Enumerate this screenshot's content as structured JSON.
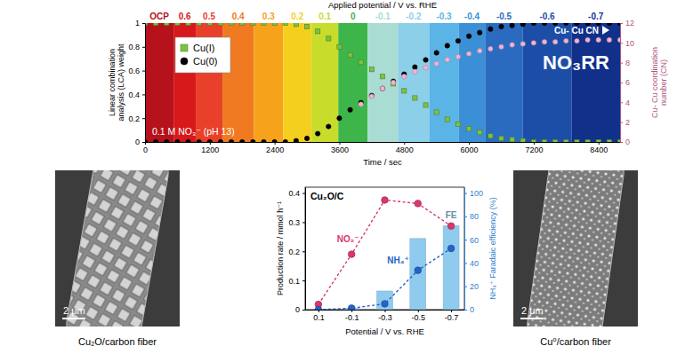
{
  "chart_data": [
    {
      "type": "scatter",
      "x_label": "Time / sec",
      "y_label": "Linear combination analysis (LCA) weight",
      "y2_label": "Cu- Cu coordination number (CN)",
      "x2_label": "Applied potential / V vs. RHE",
      "steps": {
        "labels": [
          "OCP",
          "0.6",
          "0.5",
          "0.4",
          "0.3",
          "0.2",
          "0.1",
          "0",
          "-0.1",
          "-0.2",
          "-0.3",
          "-0.4",
          "-0.5",
          "-0.6",
          "-0.7"
        ],
        "start": [
          0,
          530,
          940,
          1435,
          2015,
          2560,
          3085,
          3580,
          4125,
          4685,
          5265,
          5810,
          6300,
          7000,
          7900
        ],
        "end": [
          530,
          940,
          1435,
          2015,
          2560,
          3085,
          3580,
          4125,
          4685,
          5265,
          5810,
          6300,
          7000,
          7900,
          8800
        ],
        "colors": [
          "#b5121b",
          "#d7191c",
          "#e8402a",
          "#f07a22",
          "#f7a21b",
          "#f5cf1d",
          "#c8dc2c",
          "#3db54a",
          "#a9dcd2",
          "#8ccfe9",
          "#5ab4e5",
          "#3a8fd6",
          "#2a6bc0",
          "#1c4ea8",
          "#10308a"
        ]
      },
      "x": [
        0,
        200,
        400,
        600,
        800,
        1000,
        1200,
        1400,
        1600,
        1800,
        2000,
        2200,
        2400,
        2600,
        2800,
        3000,
        3200,
        3400,
        3600,
        3800,
        4000,
        4200,
        4400,
        4600,
        4800,
        5000,
        5200,
        5400,
        5600,
        5800,
        6000,
        6200,
        6400,
        6600,
        6800,
        7000,
        7200,
        7400,
        7600,
        7800,
        8000,
        8200,
        8400,
        8600,
        8800
      ],
      "series": [
        {
          "name": "Cu(I)",
          "color": "#7cc242",
          "marker": "square",
          "values": [
            1,
            1,
            1,
            1,
            1,
            1,
            1,
            1,
            1,
            1,
            1,
            1,
            1,
            1,
            0.99,
            0.97,
            0.93,
            0.87,
            0.8,
            0.73,
            0.67,
            0.61,
            0.55,
            0.49,
            0.43,
            0.37,
            0.31,
            0.25,
            0.19,
            0.15,
            0.11,
            0.08,
            0.05,
            0.03,
            0.02,
            0.01,
            0,
            0,
            0,
            0,
            0,
            0,
            0,
            0,
            0
          ]
        },
        {
          "name": "Cu(0)",
          "color": "#000000",
          "marker": "circle",
          "values": [
            0,
            0,
            0,
            0,
            0,
            0,
            0,
            0,
            0,
            0,
            0,
            0,
            0,
            0,
            0.01,
            0.03,
            0.07,
            0.13,
            0.2,
            0.27,
            0.33,
            0.39,
            0.45,
            0.51,
            0.57,
            0.63,
            0.69,
            0.75,
            0.81,
            0.85,
            0.89,
            0.92,
            0.95,
            0.97,
            0.98,
            0.99,
            1,
            1,
            1,
            1,
            1,
            1,
            1,
            1,
            1
          ]
        },
        {
          "name": "Cu- Cu CN",
          "color": "#f0b3d6",
          "marker": "circle",
          "axis": "y2",
          "values": [
            null,
            null,
            null,
            null,
            null,
            null,
            null,
            null,
            null,
            null,
            null,
            null,
            null,
            null,
            null,
            null,
            null,
            null,
            null,
            null,
            3.8,
            4.6,
            5.4,
            6,
            6.6,
            7.1,
            7.5,
            7.9,
            8.3,
            8.6,
            8.9,
            9.2,
            9.4,
            9.6,
            9.8,
            9.9,
            10,
            10.1,
            10.1,
            10.2,
            10.2,
            10.3,
            10.3,
            10.3,
            10.3
          ]
        }
      ],
      "xlim": [
        0,
        8800
      ],
      "xticks": [
        0,
        1200,
        2400,
        3600,
        4800,
        6000,
        7200,
        8400
      ],
      "ylim": [
        0,
        1
      ],
      "yticks": [
        0,
        0.2,
        0.4,
        0.6,
        0.8,
        1
      ],
      "y2lim": [
        0,
        12
      ],
      "y2ticks": [
        0,
        2,
        4,
        6,
        8,
        10,
        12
      ],
      "legend": "upper left",
      "annotations": [
        "0.1 M NO₃⁻ (pH 13)",
        "NO₃RR"
      ]
    },
    {
      "type": "line",
      "title": "Cu₂O/C",
      "x_label": "Potential / V vs. RHE",
      "y_label": "Production rate / mmol h⁻¹",
      "y2_label": "NH₄⁺ Faradaic efficiency (%)",
      "categories": [
        "0.1",
        "-0.1",
        "-0.3",
        "-0.5",
        "-0.7"
      ],
      "series": [
        {
          "name": "NO₂⁻",
          "type": "line",
          "color": "#d9376e",
          "marker": "circle",
          "line_style": "dashed",
          "values": [
            0.018,
            0.19,
            0.376,
            0.364,
            0.287
          ]
        },
        {
          "name": "NH₄⁺",
          "type": "line",
          "color": "#2563c9",
          "marker": "circle",
          "line_style": "dashed",
          "values": [
            0,
            0.005,
            0.02,
            0.135,
            0.21
          ]
        },
        {
          "name": "FE",
          "type": "bar",
          "color": "#8fcbee",
          "axis": "y2",
          "values": [
            0,
            1,
            16,
            61,
            72
          ]
        }
      ],
      "ylim": [
        0,
        0.42
      ],
      "yticks": [
        0,
        0.1,
        0.2,
        0.3,
        0.4
      ],
      "y2lim": [
        0,
        105
      ],
      "y2ticks": [
        0,
        20,
        40,
        60,
        80,
        100
      ]
    }
  ],
  "panels": [
    {
      "caption": "Cu₂O/carbon fiber",
      "scale_bar": "2 μm"
    },
    {
      "caption": "Cu⁰/carbon fiber",
      "scale_bar": "2 μm"
    }
  ]
}
